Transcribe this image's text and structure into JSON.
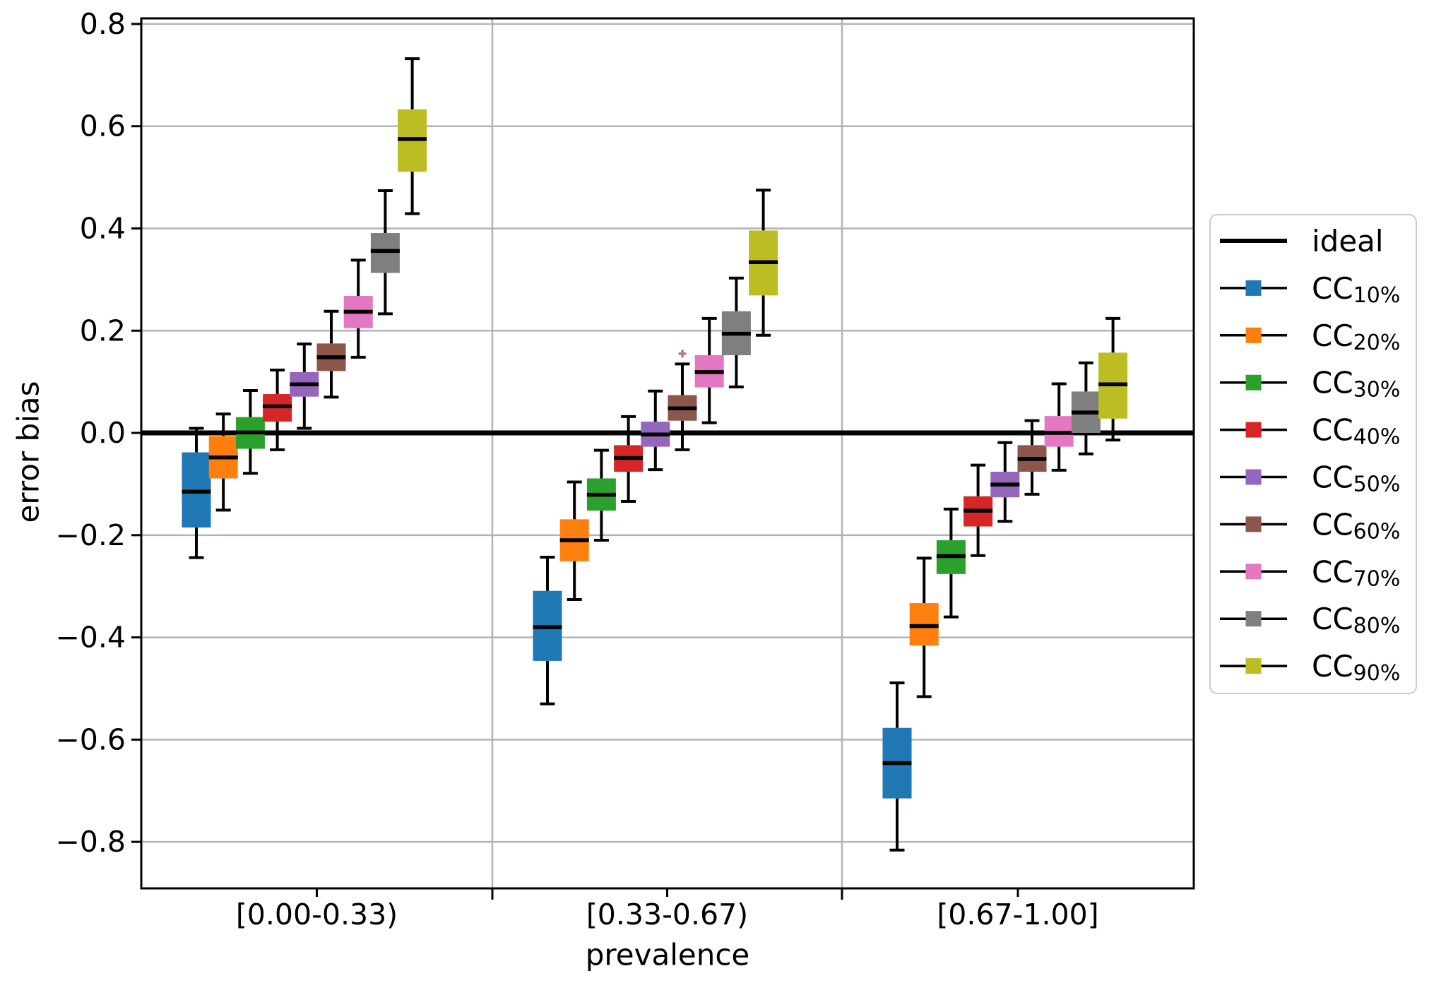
{
  "chart_data": {
    "type": "boxplot",
    "title": "",
    "xlabel": "prevalence",
    "ylabel": "error bias",
    "ylim": [
      -0.891,
      0.811
    ],
    "yticks": [
      0.8,
      0.6,
      0.4,
      0.2,
      0.0,
      -0.2,
      -0.4,
      -0.6,
      -0.8
    ],
    "ytick_labels": [
      "0.8",
      "0.6",
      "0.4",
      "0.2",
      "0.0",
      "−0.2",
      "−0.4",
      "−0.6",
      "−0.8"
    ],
    "categories": [
      "[0.00-0.33)",
      "[0.33-0.67)",
      "[0.67-1.00]"
    ],
    "grid": true,
    "grid_color": "#b3b3b3",
    "legend_position": "right outside",
    "ideal": {
      "label": "ideal",
      "value": 0.0,
      "color": "#000000"
    },
    "series": [
      {
        "name": "CC",
        "sub": "10%",
        "color": "#1f77b4",
        "boxes": [
          {
            "whislo": -0.244,
            "q1": -0.185,
            "med": -0.115,
            "q3": -0.038,
            "whishi": 0.009,
            "fliers": []
          },
          {
            "whislo": -0.53,
            "q1": -0.446,
            "med": -0.38,
            "q3": -0.309,
            "whishi": -0.243,
            "fliers": []
          },
          {
            "whislo": -0.816,
            "q1": -0.715,
            "med": -0.646,
            "q3": -0.577,
            "whishi": -0.489,
            "fliers": []
          }
        ]
      },
      {
        "name": "CC",
        "sub": "20%",
        "color": "#ff7f0e",
        "boxes": [
          {
            "whislo": -0.151,
            "q1": -0.089,
            "med": -0.048,
            "q3": -0.006,
            "whishi": 0.037,
            "fliers": []
          },
          {
            "whislo": -0.326,
            "q1": -0.251,
            "med": -0.21,
            "q3": -0.169,
            "whishi": -0.096,
            "fliers": []
          },
          {
            "whislo": -0.516,
            "q1": -0.416,
            "med": -0.378,
            "q3": -0.333,
            "whishi": -0.245,
            "fliers": []
          }
        ]
      },
      {
        "name": "CC",
        "sub": "30%",
        "color": "#2ca02c",
        "boxes": [
          {
            "whislo": -0.079,
            "q1": -0.031,
            "med": 0.001,
            "q3": 0.031,
            "whishi": 0.083,
            "fliers": []
          },
          {
            "whislo": -0.21,
            "q1": -0.152,
            "med": -0.121,
            "q3": -0.089,
            "whishi": -0.034,
            "fliers": []
          },
          {
            "whislo": -0.36,
            "q1": -0.276,
            "med": -0.241,
            "q3": -0.21,
            "whishi": -0.149,
            "fliers": []
          }
        ]
      },
      {
        "name": "CC",
        "sub": "40%",
        "color": "#d62728",
        "boxes": [
          {
            "whislo": -0.033,
            "q1": 0.022,
            "med": 0.052,
            "q3": 0.076,
            "whishi": 0.123,
            "fliers": []
          },
          {
            "whislo": -0.134,
            "q1": -0.076,
            "med": -0.049,
            "q3": -0.024,
            "whishi": 0.032,
            "fliers": []
          },
          {
            "whislo": -0.24,
            "q1": -0.183,
            "med": -0.152,
            "q3": -0.124,
            "whishi": -0.063,
            "fliers": []
          }
        ]
      },
      {
        "name": "CC",
        "sub": "50%",
        "color": "#9467bd",
        "boxes": [
          {
            "whislo": 0.009,
            "q1": 0.071,
            "med": 0.095,
            "q3": 0.119,
            "whishi": 0.174,
            "fliers": []
          },
          {
            "whislo": -0.072,
            "q1": -0.027,
            "med": -0.003,
            "q3": 0.022,
            "whishi": 0.082,
            "fliers": []
          },
          {
            "whislo": -0.173,
            "q1": -0.126,
            "med": -0.101,
            "q3": -0.076,
            "whishi": -0.019,
            "fliers": []
          }
        ]
      },
      {
        "name": "CC",
        "sub": "60%",
        "color": "#8c564b",
        "boxes": [
          {
            "whislo": 0.07,
            "q1": 0.121,
            "med": 0.148,
            "q3": 0.175,
            "whishi": 0.238,
            "fliers": []
          },
          {
            "whislo": -0.033,
            "q1": 0.024,
            "med": 0.048,
            "q3": 0.074,
            "whishi": 0.135,
            "fliers": [
              0.155
            ]
          },
          {
            "whislo": -0.12,
            "q1": -0.076,
            "med": -0.051,
            "q3": -0.024,
            "whishi": 0.024,
            "fliers": []
          }
        ]
      },
      {
        "name": "CC",
        "sub": "70%",
        "color": "#e377c2",
        "boxes": [
          {
            "whislo": 0.148,
            "q1": 0.205,
            "med": 0.237,
            "q3": 0.268,
            "whishi": 0.338,
            "fliers": []
          },
          {
            "whislo": 0.02,
            "q1": 0.089,
            "med": 0.119,
            "q3": 0.152,
            "whishi": 0.224,
            "fliers": []
          },
          {
            "whislo": -0.073,
            "q1": -0.027,
            "med": 0.0,
            "q3": 0.033,
            "whishi": 0.096,
            "fliers": []
          }
        ]
      },
      {
        "name": "CC",
        "sub": "80%",
        "color": "#7f7f7f",
        "boxes": [
          {
            "whislo": 0.233,
            "q1": 0.313,
            "med": 0.356,
            "q3": 0.391,
            "whishi": 0.474,
            "fliers": []
          },
          {
            "whislo": 0.09,
            "q1": 0.152,
            "med": 0.194,
            "q3": 0.238,
            "whishi": 0.303,
            "fliers": []
          },
          {
            "whislo": -0.041,
            "q1": 0.0,
            "med": 0.04,
            "q3": 0.081,
            "whishi": 0.137,
            "fliers": []
          }
        ]
      },
      {
        "name": "CC",
        "sub": "90%",
        "color": "#bcbd22",
        "boxes": [
          {
            "whislo": 0.429,
            "q1": 0.511,
            "med": 0.575,
            "q3": 0.633,
            "whishi": 0.732,
            "fliers": []
          },
          {
            "whislo": 0.191,
            "q1": 0.269,
            "med": 0.334,
            "q3": 0.396,
            "whishi": 0.475,
            "fliers": []
          },
          {
            "whislo": -0.014,
            "q1": 0.028,
            "med": 0.095,
            "q3": 0.157,
            "whishi": 0.224,
            "fliers": []
          }
        ]
      }
    ]
  }
}
